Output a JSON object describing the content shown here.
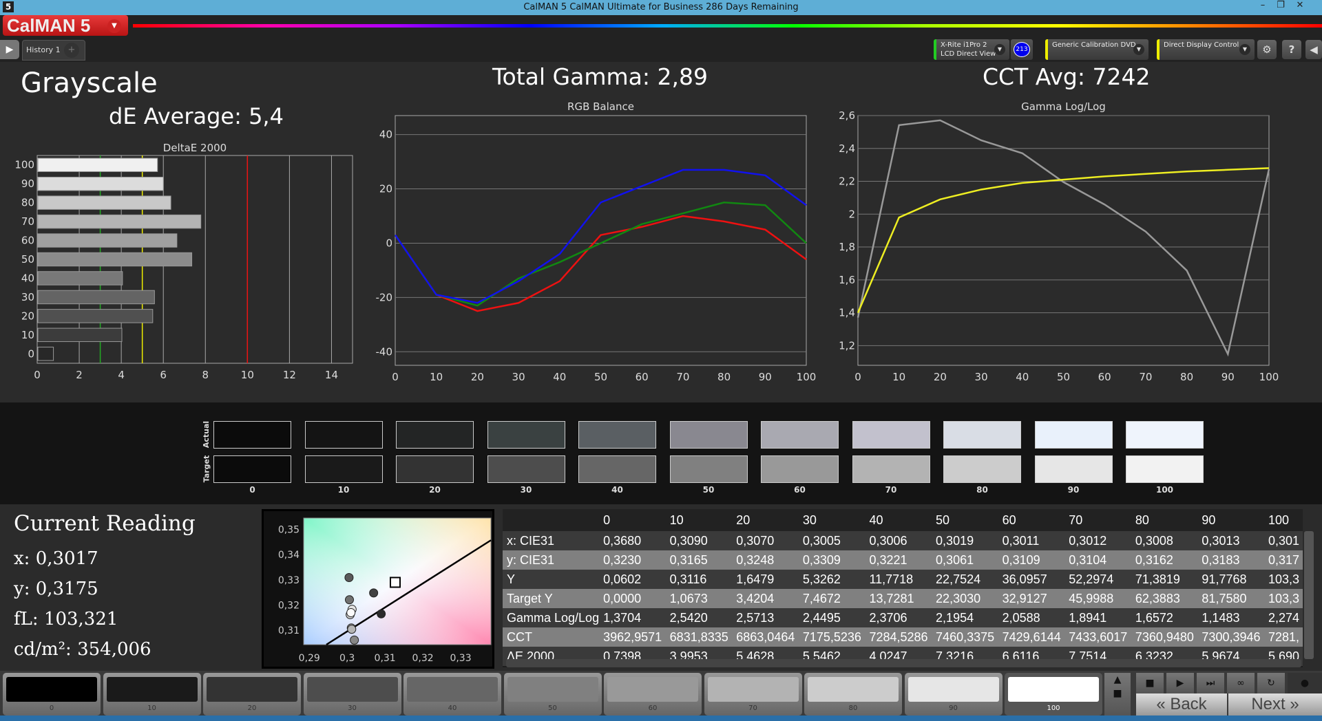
{
  "window": {
    "title": "CalMAN 5 CalMAN Ultimate for Business 286 Days Remaining",
    "app_icon": "5"
  },
  "header": {
    "logo": "CalMAN 5",
    "tab": "History 1",
    "tab_add": "+",
    "meter": {
      "line1": "X-Rite i1Pro 2",
      "line2": "LCD Direct View",
      "badge": "213",
      "status_color": "#22cc22",
      "badge_color": "#0000ee"
    },
    "source": {
      "label": "Generic Calibration DVD",
      "status_color": "#eeee00"
    },
    "display": {
      "label": "Direct Display Control",
      "status_color": "#eeee00"
    },
    "icons": [
      "gear-icon",
      "help-icon",
      "collapse-icon"
    ],
    "help_label": "?"
  },
  "main": {
    "title": "Grayscale",
    "de_average": "dE Average: 5,4",
    "total_gamma": "Total Gamma: 2,89",
    "cct_avg": "CCT Avg: 7242"
  },
  "chart_data": [
    {
      "type": "bar",
      "title": "DeltaE 2000",
      "orientation": "horizontal",
      "categories": [
        "0",
        "10",
        "20",
        "30",
        "40",
        "50",
        "60",
        "70",
        "80",
        "90",
        "100"
      ],
      "values": [
        0.7398,
        3.9953,
        5.4628,
        5.5462,
        4.0247,
        7.3216,
        6.6116,
        7.7514,
        6.3232,
        5.9674,
        5.69
      ],
      "xlim": [
        0,
        15
      ],
      "xticks": [
        0,
        2,
        4,
        6,
        8,
        10,
        12,
        14
      ],
      "thresholds": [
        {
          "value": 3,
          "color": "#22aa22"
        },
        {
          "value": 5,
          "color": "#eeee00"
        },
        {
          "value": 10,
          "color": "#ee1111"
        }
      ]
    },
    {
      "type": "line",
      "title": "RGB Balance",
      "x": [
        0,
        10,
        20,
        30,
        40,
        50,
        60,
        70,
        80,
        90,
        100
      ],
      "ylim": [
        -45,
        47
      ],
      "yticks": [
        -40,
        -20,
        0,
        20,
        40
      ],
      "xticks": [
        0,
        10,
        20,
        30,
        40,
        50,
        60,
        70,
        80,
        90,
        100
      ],
      "series": [
        {
          "color": "#ee1111",
          "values": [
            3,
            -19,
            -25,
            -22,
            -14,
            3,
            6,
            10,
            8,
            5,
            -6
          ]
        },
        {
          "color": "#118811",
          "values": [
            3,
            -19,
            -23,
            -13,
            -7,
            0,
            7,
            11,
            15,
            14,
            0
          ]
        },
        {
          "color": "#1111ee",
          "values": [
            3,
            -19,
            -22,
            -14,
            -4,
            15,
            21,
            27,
            27,
            25,
            14
          ]
        }
      ]
    },
    {
      "type": "line",
      "title": "Gamma Log/Log",
      "x": [
        0,
        10,
        20,
        30,
        40,
        50,
        60,
        70,
        80,
        90,
        100
      ],
      "ylim": [
        1.08,
        2.6
      ],
      "yticks": [
        "1,2",
        "1,4",
        "1,6",
        "1,8",
        "2",
        "2,2",
        "2,4",
        "2,6"
      ],
      "xticks": [
        0,
        10,
        20,
        30,
        40,
        50,
        60,
        70,
        80,
        90,
        100
      ],
      "series": [
        {
          "color": "#999999",
          "values": [
            1.3704,
            2.542,
            2.5713,
            2.4495,
            2.3706,
            2.1954,
            2.0588,
            1.8941,
            1.6572,
            1.1483,
            2.274
          ]
        },
        {
          "color": "#eeee22",
          "values": [
            1.4,
            1.98,
            2.09,
            2.15,
            2.19,
            2.21,
            2.23,
            2.245,
            2.26,
            2.27,
            2.28
          ]
        }
      ]
    }
  ],
  "swatches": {
    "labels": [
      "0",
      "10",
      "20",
      "30",
      "40",
      "50",
      "60",
      "70",
      "80",
      "90",
      "100"
    ],
    "actual_label": "Actual",
    "target_label": "Target",
    "actual": [
      "#0b0b0b",
      "#141414",
      "#232525",
      "#3a4141",
      "#5a5f63",
      "#898890",
      "#a9a9b1",
      "#c2c1cd",
      "#d9dde5",
      "#e9f1fb",
      "#eff4fc"
    ],
    "target": [
      "#0b0b0b",
      "#1a1a1a",
      "#333333",
      "#4d4d4d",
      "#666666",
      "#808080",
      "#999999",
      "#b3b3b3",
      "#cccccc",
      "#e6e6e6",
      "#f2f2f2"
    ]
  },
  "reading": {
    "title": "Current Reading",
    "x": "x: 0,3017",
    "y": "y: 0,3175",
    "fl": "fL: 103,321",
    "cdm2": "cd/m²: 354,006"
  },
  "cie": {
    "xticks": [
      "0,29",
      "0,3",
      "0,31",
      "0,32",
      "0,33"
    ],
    "yticks": [
      "0,35",
      "0,34",
      "0,33",
      "0,32",
      "0,31"
    ],
    "target": {
      "x": 0.3127,
      "y": 0.329
    }
  },
  "table": {
    "columns": [
      "",
      "0",
      "10",
      "20",
      "30",
      "40",
      "50",
      "60",
      "70",
      "80",
      "90",
      "100"
    ],
    "rows": [
      [
        "x: CIE31",
        "0,3680",
        "0,3090",
        "0,3070",
        "0,3005",
        "0,3006",
        "0,3019",
        "0,3011",
        "0,3012",
        "0,3008",
        "0,3013",
        "0,301"
      ],
      [
        "y: CIE31",
        "0,3230",
        "0,3165",
        "0,3248",
        "0,3309",
        "0,3221",
        "0,3061",
        "0,3109",
        "0,3104",
        "0,3162",
        "0,3183",
        "0,317"
      ],
      [
        "Y",
        "0,0602",
        "0,3116",
        "1,6479",
        "5,3262",
        "11,7718",
        "22,7524",
        "36,0957",
        "52,2974",
        "71,3819",
        "91,7768",
        "103,3"
      ],
      [
        "Target Y",
        "0,0000",
        "1,0673",
        "3,4204",
        "7,4672",
        "13,7281",
        "22,3030",
        "32,9127",
        "45,9988",
        "62,3883",
        "81,7580",
        "103,3"
      ],
      [
        "Gamma Log/Log",
        "1,3704",
        "2,5420",
        "2,5713",
        "2,4495",
        "2,3706",
        "2,1954",
        "2,0588",
        "1,8941",
        "1,6572",
        "1,1483",
        "2,274"
      ],
      [
        "CCT",
        "3962,9571",
        "6831,8335",
        "6863,0464",
        "7175,5236",
        "7284,5286",
        "7460,3375",
        "7429,6144",
        "7433,6017",
        "7360,9480",
        "7300,3946",
        "7281,"
      ],
      [
        "ΔE 2000",
        "0,7398",
        "3,9953",
        "5,4628",
        "5,5462",
        "4,0247",
        "7,3216",
        "6,6116",
        "7,7514",
        "6,3232",
        "5,9674",
        "5,690"
      ]
    ]
  },
  "patches": {
    "labels": [
      "0",
      "10",
      "20",
      "30",
      "40",
      "50",
      "60",
      "70",
      "80",
      "90",
      "100"
    ],
    "colors": [
      "#000000",
      "#1a1a1a",
      "#333333",
      "#4d4d4d",
      "#666666",
      "#808080",
      "#999999",
      "#b3b3b3",
      "#cccccc",
      "#e6e6e6",
      "#ffffff"
    ],
    "selected": "100"
  },
  "controls": {
    "back": "Back",
    "next": "Next"
  }
}
